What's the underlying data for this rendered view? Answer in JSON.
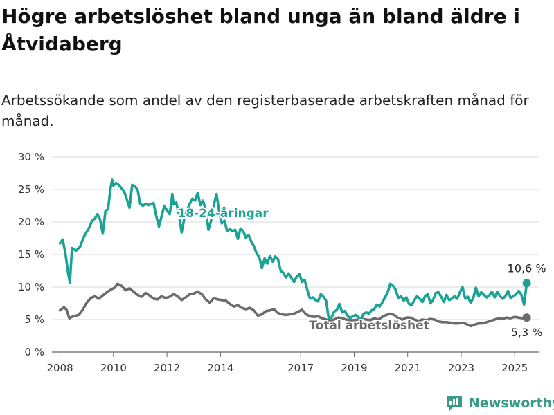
{
  "title": "Högre arbetslöshet bland unga än bland äldre i Åtvidaberg",
  "subtitle": "Arbetssökande som andel av den registerbaserade arbetskraften månad för månad.",
  "brand": {
    "name": "Newsworthy",
    "icon": "bar-chart-logo-icon"
  },
  "chart_data": {
    "type": "line",
    "title": "Högre arbetslöshet bland unga än bland äldre i Åtvidaberg",
    "subtitle": "Arbetssökande som andel av den registerbaserade arbetskraften månad för månad.",
    "xlabel": "",
    "ylabel": "",
    "ylim": [
      0,
      30
    ],
    "yticks": [
      0,
      5,
      10,
      15,
      20,
      25,
      30
    ],
    "ytick_labels": [
      "0 %",
      "5 %",
      "10 %",
      "15 %",
      "20 %",
      "25 %",
      "30 %"
    ],
    "xlim": [
      2007.7,
      2025.9
    ],
    "xticks": [
      2008,
      2010,
      2012,
      2014,
      2017,
      2019,
      2021,
      2023,
      2025
    ],
    "xtick_labels": [
      "2008",
      "2010",
      "2012",
      "2014",
      "2017",
      "2019",
      "2021",
      "2023",
      "2025"
    ],
    "grid": "horizontal",
    "series": [
      {
        "name": "18-24-åringar",
        "color": "#1aa394",
        "end_label": "10,6 %",
        "points": [
          [
            2008.0,
            16.7
          ],
          [
            2008.1,
            17.3
          ],
          [
            2008.2,
            15.3
          ],
          [
            2008.3,
            12.3
          ],
          [
            2008.37,
            10.7
          ],
          [
            2008.45,
            16.0
          ],
          [
            2008.6,
            15.6
          ],
          [
            2008.75,
            16.2
          ],
          [
            2008.9,
            17.8
          ],
          [
            2009.0,
            18.5
          ],
          [
            2009.1,
            19.2
          ],
          [
            2009.2,
            20.2
          ],
          [
            2009.3,
            20.5
          ],
          [
            2009.4,
            21.2
          ],
          [
            2009.5,
            20.4
          ],
          [
            2009.6,
            18.2
          ],
          [
            2009.7,
            21.7
          ],
          [
            2009.8,
            22.0
          ],
          [
            2009.88,
            24.9
          ],
          [
            2009.95,
            26.5
          ],
          [
            2010.0,
            25.6
          ],
          [
            2010.1,
            26.0
          ],
          [
            2010.2,
            25.7
          ],
          [
            2010.3,
            25.2
          ],
          [
            2010.4,
            24.7
          ],
          [
            2010.5,
            23.5
          ],
          [
            2010.6,
            22.2
          ],
          [
            2010.7,
            25.7
          ],
          [
            2010.8,
            25.5
          ],
          [
            2010.9,
            25.0
          ],
          [
            2011.0,
            22.8
          ],
          [
            2011.1,
            22.5
          ],
          [
            2011.2,
            22.8
          ],
          [
            2011.3,
            22.6
          ],
          [
            2011.4,
            22.8
          ],
          [
            2011.5,
            22.9
          ],
          [
            2011.6,
            20.9
          ],
          [
            2011.7,
            19.3
          ],
          [
            2011.8,
            20.9
          ],
          [
            2011.9,
            22.5
          ],
          [
            2012.0,
            21.8
          ],
          [
            2012.1,
            21.2
          ],
          [
            2012.15,
            22.5
          ],
          [
            2012.2,
            24.3
          ],
          [
            2012.25,
            22.7
          ],
          [
            2012.35,
            23.0
          ],
          [
            2012.45,
            21.0
          ],
          [
            2012.55,
            18.4
          ],
          [
            2012.65,
            20.6
          ],
          [
            2012.75,
            21.8
          ],
          [
            2012.85,
            22.8
          ],
          [
            2012.95,
            23.6
          ],
          [
            2013.05,
            23.3
          ],
          [
            2013.15,
            24.5
          ],
          [
            2013.25,
            22.6
          ],
          [
            2013.35,
            23.3
          ],
          [
            2013.45,
            21.8
          ],
          [
            2013.55,
            18.8
          ],
          [
            2013.65,
            20.2
          ],
          [
            2013.75,
            22.6
          ],
          [
            2013.85,
            24.3
          ],
          [
            2013.95,
            21.7
          ],
          [
            2014.05,
            19.8
          ],
          [
            2014.15,
            20.2
          ],
          [
            2014.25,
            18.6
          ],
          [
            2014.35,
            18.9
          ],
          [
            2014.45,
            18.6
          ],
          [
            2014.55,
            18.8
          ],
          [
            2014.65,
            17.4
          ],
          [
            2014.75,
            19.0
          ],
          [
            2014.85,
            18.6
          ],
          [
            2014.95,
            17.6
          ],
          [
            2015.05,
            18.0
          ],
          [
            2015.15,
            17.0
          ],
          [
            2015.25,
            16.3
          ],
          [
            2015.35,
            15.2
          ],
          [
            2015.45,
            14.6
          ],
          [
            2015.55,
            12.9
          ],
          [
            2015.65,
            14.4
          ],
          [
            2015.75,
            13.6
          ],
          [
            2015.85,
            14.8
          ],
          [
            2015.95,
            13.9
          ],
          [
            2016.05,
            14.7
          ],
          [
            2016.15,
            14.3
          ],
          [
            2016.25,
            12.5
          ],
          [
            2016.35,
            12.2
          ],
          [
            2016.45,
            11.5
          ],
          [
            2016.55,
            12.1
          ],
          [
            2016.65,
            11.4
          ],
          [
            2016.75,
            10.8
          ],
          [
            2016.85,
            11.6
          ],
          [
            2016.95,
            12.0
          ],
          [
            2017.05,
            10.8
          ],
          [
            2017.15,
            11.1
          ],
          [
            2017.25,
            9.5
          ],
          [
            2017.35,
            8.2
          ],
          [
            2017.45,
            8.4
          ],
          [
            2017.55,
            8.0
          ],
          [
            2017.65,
            7.8
          ],
          [
            2017.75,
            8.9
          ],
          [
            2017.85,
            8.5
          ],
          [
            2017.95,
            7.9
          ],
          [
            2018.05,
            5.1
          ],
          [
            2018.15,
            5.3
          ],
          [
            2018.25,
            6.2
          ],
          [
            2018.35,
            6.5
          ],
          [
            2018.45,
            7.4
          ],
          [
            2018.55,
            6.1
          ],
          [
            2018.65,
            6.3
          ],
          [
            2018.75,
            5.6
          ],
          [
            2018.85,
            5.2
          ],
          [
            2018.95,
            5.5
          ],
          [
            2019.05,
            5.7
          ],
          [
            2019.15,
            5.4
          ],
          [
            2019.25,
            5.0
          ],
          [
            2019.35,
            5.9
          ],
          [
            2019.45,
            6.1
          ],
          [
            2019.55,
            5.9
          ],
          [
            2019.65,
            6.4
          ],
          [
            2019.75,
            6.6
          ],
          [
            2019.85,
            7.3
          ],
          [
            2019.95,
            7.0
          ],
          [
            2020.05,
            7.6
          ],
          [
            2020.15,
            8.4
          ],
          [
            2020.25,
            9.2
          ],
          [
            2020.35,
            10.5
          ],
          [
            2020.45,
            10.2
          ],
          [
            2020.55,
            9.6
          ],
          [
            2020.65,
            8.3
          ],
          [
            2020.75,
            8.6
          ],
          [
            2020.85,
            7.9
          ],
          [
            2020.95,
            8.4
          ],
          [
            2021.05,
            7.4
          ],
          [
            2021.15,
            7.2
          ],
          [
            2021.25,
            8.0
          ],
          [
            2021.35,
            8.6
          ],
          [
            2021.45,
            8.2
          ],
          [
            2021.55,
            7.7
          ],
          [
            2021.65,
            8.6
          ],
          [
            2021.75,
            8.9
          ],
          [
            2021.85,
            7.5
          ],
          [
            2021.95,
            8.0
          ],
          [
            2022.05,
            9.1
          ],
          [
            2022.15,
            9.2
          ],
          [
            2022.25,
            8.5
          ],
          [
            2022.35,
            7.7
          ],
          [
            2022.45,
            8.8
          ],
          [
            2022.55,
            8.0
          ],
          [
            2022.65,
            8.2
          ],
          [
            2022.75,
            8.6
          ],
          [
            2022.85,
            8.2
          ],
          [
            2022.95,
            9.2
          ],
          [
            2023.05,
            10.0
          ],
          [
            2023.15,
            8.2
          ],
          [
            2023.25,
            8.5
          ],
          [
            2023.35,
            7.6
          ],
          [
            2023.45,
            8.3
          ],
          [
            2023.55,
            9.9
          ],
          [
            2023.65,
            8.6
          ],
          [
            2023.75,
            9.2
          ],
          [
            2023.85,
            8.8
          ],
          [
            2023.95,
            8.4
          ],
          [
            2024.05,
            8.7
          ],
          [
            2024.15,
            9.3
          ],
          [
            2024.25,
            8.4
          ],
          [
            2024.35,
            9.3
          ],
          [
            2024.45,
            8.6
          ],
          [
            2024.55,
            8.2
          ],
          [
            2024.65,
            8.6
          ],
          [
            2024.75,
            9.4
          ],
          [
            2024.85,
            8.3
          ],
          [
            2024.95,
            8.6
          ],
          [
            2025.05,
            8.9
          ],
          [
            2025.15,
            9.4
          ],
          [
            2025.25,
            8.8
          ],
          [
            2025.35,
            7.3
          ],
          [
            2025.45,
            10.6
          ]
        ]
      },
      {
        "name": "Total arbetslöshet",
        "color": "#6b6b6b",
        "end_label": "5,3 %",
        "points": [
          [
            2008.0,
            6.4
          ],
          [
            2008.15,
            6.9
          ],
          [
            2008.25,
            6.5
          ],
          [
            2008.35,
            5.2
          ],
          [
            2008.5,
            5.5
          ],
          [
            2008.7,
            5.7
          ],
          [
            2008.85,
            6.5
          ],
          [
            2009.0,
            7.6
          ],
          [
            2009.15,
            8.3
          ],
          [
            2009.3,
            8.6
          ],
          [
            2009.45,
            8.2
          ],
          [
            2009.6,
            8.7
          ],
          [
            2009.75,
            9.2
          ],
          [
            2009.9,
            9.6
          ],
          [
            2010.05,
            9.9
          ],
          [
            2010.15,
            10.5
          ],
          [
            2010.3,
            10.2
          ],
          [
            2010.45,
            9.5
          ],
          [
            2010.6,
            9.8
          ],
          [
            2010.75,
            9.3
          ],
          [
            2010.9,
            8.8
          ],
          [
            2011.05,
            8.5
          ],
          [
            2011.2,
            9.1
          ],
          [
            2011.35,
            8.7
          ],
          [
            2011.5,
            8.2
          ],
          [
            2011.65,
            8.1
          ],
          [
            2011.8,
            8.6
          ],
          [
            2011.95,
            8.3
          ],
          [
            2012.1,
            8.5
          ],
          [
            2012.25,
            8.9
          ],
          [
            2012.4,
            8.6
          ],
          [
            2012.55,
            8.0
          ],
          [
            2012.7,
            8.4
          ],
          [
            2012.85,
            8.9
          ],
          [
            2013.0,
            9.0
          ],
          [
            2013.15,
            9.3
          ],
          [
            2013.3,
            8.9
          ],
          [
            2013.45,
            8.1
          ],
          [
            2013.6,
            7.6
          ],
          [
            2013.75,
            8.3
          ],
          [
            2013.9,
            8.1
          ],
          [
            2014.05,
            8.0
          ],
          [
            2014.2,
            7.9
          ],
          [
            2014.35,
            7.4
          ],
          [
            2014.5,
            7.0
          ],
          [
            2014.65,
            7.2
          ],
          [
            2014.8,
            6.8
          ],
          [
            2014.95,
            6.6
          ],
          [
            2015.1,
            6.8
          ],
          [
            2015.25,
            6.4
          ],
          [
            2015.4,
            5.6
          ],
          [
            2015.55,
            5.8
          ],
          [
            2015.7,
            6.3
          ],
          [
            2015.85,
            6.4
          ],
          [
            2016.0,
            6.6
          ],
          [
            2016.15,
            6.0
          ],
          [
            2016.3,
            5.8
          ],
          [
            2016.45,
            5.7
          ],
          [
            2016.6,
            5.8
          ],
          [
            2016.75,
            5.9
          ],
          [
            2016.9,
            6.2
          ],
          [
            2017.05,
            6.5
          ],
          [
            2017.2,
            5.8
          ],
          [
            2017.35,
            5.5
          ],
          [
            2017.5,
            5.4
          ],
          [
            2017.65,
            5.5
          ],
          [
            2017.8,
            5.2
          ],
          [
            2017.95,
            5.0
          ],
          [
            2018.1,
            4.8
          ],
          [
            2018.25,
            5.0
          ],
          [
            2018.4,
            5.3
          ],
          [
            2018.55,
            5.2
          ],
          [
            2018.7,
            5.0
          ],
          [
            2018.85,
            4.9
          ],
          [
            2019.0,
            4.9
          ],
          [
            2019.15,
            5.0
          ],
          [
            2019.3,
            5.1
          ],
          [
            2019.45,
            5.0
          ],
          [
            2019.6,
            4.9
          ],
          [
            2019.75,
            5.2
          ],
          [
            2019.9,
            5.0
          ],
          [
            2020.05,
            5.4
          ],
          [
            2020.2,
            5.7
          ],
          [
            2020.35,
            5.9
          ],
          [
            2020.5,
            5.7
          ],
          [
            2020.65,
            5.2
          ],
          [
            2020.8,
            5.0
          ],
          [
            2020.95,
            5.3
          ],
          [
            2021.1,
            5.3
          ],
          [
            2021.25,
            5.0
          ],
          [
            2021.4,
            4.8
          ],
          [
            2021.55,
            5.0
          ],
          [
            2021.7,
            4.9
          ],
          [
            2021.85,
            5.1
          ],
          [
            2022.0,
            5.0
          ],
          [
            2022.15,
            4.7
          ],
          [
            2022.3,
            4.6
          ],
          [
            2022.45,
            4.6
          ],
          [
            2022.6,
            4.5
          ],
          [
            2022.75,
            4.4
          ],
          [
            2022.9,
            4.4
          ],
          [
            2023.05,
            4.5
          ],
          [
            2023.2,
            4.3
          ],
          [
            2023.35,
            4.0
          ],
          [
            2023.5,
            4.2
          ],
          [
            2023.65,
            4.4
          ],
          [
            2023.8,
            4.4
          ],
          [
            2023.95,
            4.6
          ],
          [
            2024.1,
            4.8
          ],
          [
            2024.25,
            5.0
          ],
          [
            2024.4,
            5.2
          ],
          [
            2024.55,
            5.1
          ],
          [
            2024.7,
            5.3
          ],
          [
            2024.85,
            5.2
          ],
          [
            2025.0,
            5.4
          ],
          [
            2025.15,
            5.3
          ],
          [
            2025.3,
            5.2
          ],
          [
            2025.45,
            5.3
          ]
        ]
      }
    ]
  }
}
